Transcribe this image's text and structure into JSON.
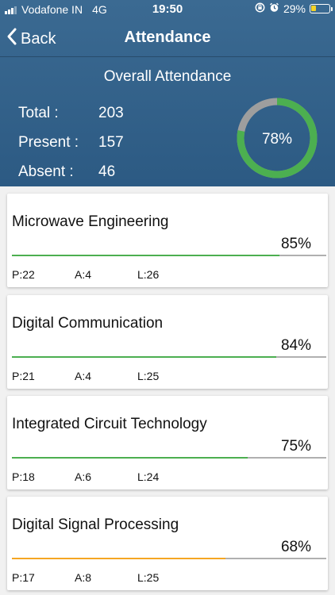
{
  "status_bar": {
    "carrier": "Vodafone IN",
    "network": "4G",
    "time": "19:50",
    "battery": "29%",
    "battery_level": 0.29,
    "battery_color": "#f5d327"
  },
  "nav": {
    "back_label": "Back",
    "title": "Attendance"
  },
  "overall": {
    "title": "Overall Attendance",
    "total_label": "Total :",
    "total_value": "203",
    "present_label": "Present :",
    "present_value": "157",
    "absent_label": "Absent :",
    "absent_value": "46",
    "percent_label": "78%",
    "percent": 78,
    "ring_color": "#4caf50",
    "ring_track_color": "#9e9e9e"
  },
  "subjects": [
    {
      "name": "Microwave Engineering",
      "percent_label": "85%",
      "percent": 85,
      "bar_color": "#4caf50",
      "present": "P:22",
      "absent": "A:4",
      "leave": "L:26"
    },
    {
      "name": "Digital Communication",
      "percent_label": "84%",
      "percent": 84,
      "bar_color": "#4caf50",
      "present": "P:21",
      "absent": "A:4",
      "leave": "L:25"
    },
    {
      "name": "Integrated Circuit Technology",
      "percent_label": "75%",
      "percent": 75,
      "bar_color": "#4caf50",
      "present": "P:18",
      "absent": "A:6",
      "leave": "L:24"
    },
    {
      "name": "Digital Signal Processing",
      "percent_label": "68%",
      "percent": 68,
      "bar_color": "#f5a623",
      "present": "P:17",
      "absent": "A:8",
      "leave": "L:25"
    }
  ]
}
